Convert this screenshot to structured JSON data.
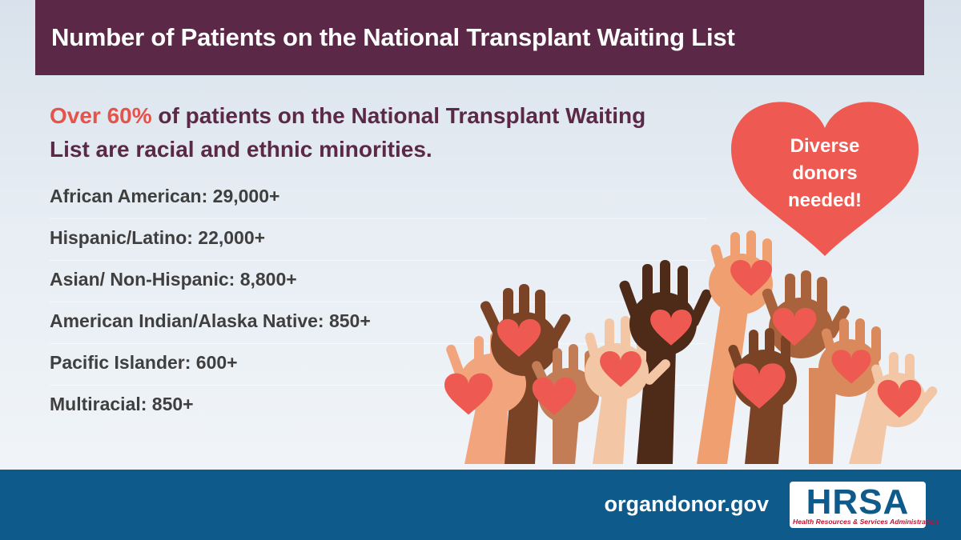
{
  "banner": {
    "title": "Number of Patients on the National Transplant Waiting List"
  },
  "headline": {
    "accent": "Over 60%",
    "rest": " of patients on the National Transplant Waiting List are racial and ethnic minorities."
  },
  "stats": [
    "African American: 29,000+",
    "Hispanic/Latino: 22,000+",
    "Asian/ Non-Hispanic: 8,800+",
    "American Indian/Alaska Native: 850+",
    "Pacific Islander: 600+",
    "Multiracial: 850+"
  ],
  "heart_badge": {
    "lines": [
      "Diverse",
      "donors",
      "needed!"
    ]
  },
  "footer": {
    "url": "organdonor.gov",
    "logo_text": "HRSA",
    "logo_subtext": "Health Resources & Services Administration"
  },
  "colors": {
    "banner": "#5c2848",
    "accent": "#e5534b",
    "heart": "#ee5a52",
    "footer": "#0e5a8a"
  },
  "illustration": {
    "name": "raised-hands-holding-hearts"
  }
}
